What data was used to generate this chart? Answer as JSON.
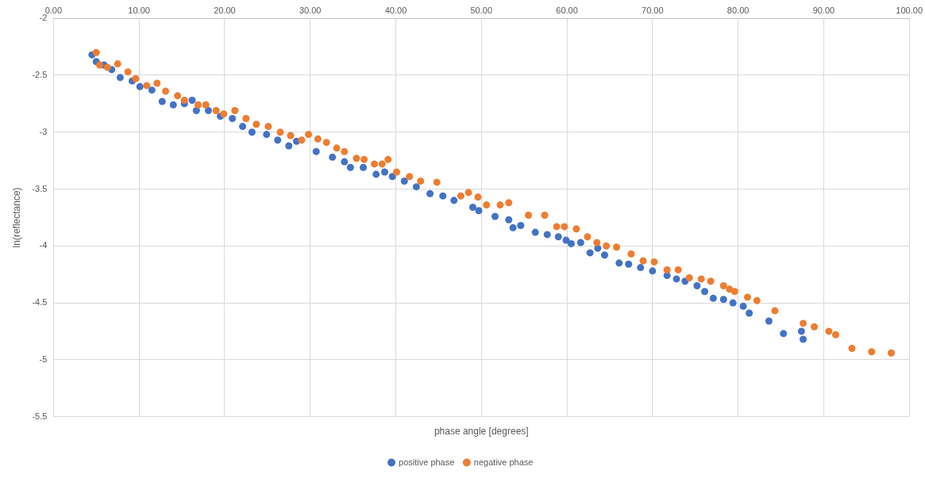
{
  "chart_data": {
    "type": "scatter",
    "xlabel": "phase angle [degrees]",
    "ylabel": "ln(reflectance)",
    "xlim": [
      0,
      100
    ],
    "ylim": [
      -5.5,
      -2
    ],
    "xticks": [
      {
        "value": 0,
        "label": "0.00"
      },
      {
        "value": 10,
        "label": "10.00"
      },
      {
        "value": 20,
        "label": "20.00"
      },
      {
        "value": 30,
        "label": "30.00"
      },
      {
        "value": 40,
        "label": "40.00"
      },
      {
        "value": 50,
        "label": "50.00"
      },
      {
        "value": 60,
        "label": "60.00"
      },
      {
        "value": 70,
        "label": "70.00"
      },
      {
        "value": 80,
        "label": "80.00"
      },
      {
        "value": 90,
        "label": "90.00"
      },
      {
        "value": 100,
        "label": "100.00"
      }
    ],
    "yticks": [
      -2,
      -2.5,
      -3,
      -3.5,
      -4,
      -4.5,
      -5,
      -5.5
    ],
    "grid": true,
    "legend": "bottom",
    "marker": "circle",
    "series": [
      {
        "name": "positive phase",
        "color": "#4472c4",
        "x": [
          4.5,
          5,
          5.9,
          6.8,
          7.8,
          9.2,
          10.1,
          11.5,
          12.7,
          14.0,
          15.3,
          16.2,
          16.7,
          18.1,
          19.5,
          20.9,
          22.1,
          23.2,
          24.9,
          26.2,
          27.5,
          28.4,
          30.7,
          32.6,
          34.0,
          34.7,
          36.2,
          37.7,
          38.7,
          39.6,
          41.0,
          42.4,
          44.0,
          45.5,
          46.8,
          49.0,
          49.7,
          51.6,
          53.2,
          53.7,
          54.6,
          56.3,
          57.7,
          59.0,
          59.9,
          60.5,
          61.6,
          62.7,
          63.6,
          64.4,
          66.1,
          67.2,
          68.6,
          70.0,
          71.7,
          72.8,
          73.8,
          75.2,
          76.1,
          77.1,
          78.3,
          79.4,
          80.6,
          81.3,
          83.6,
          85.3,
          87.4,
          87.6
        ],
        "values": [
          -2.32,
          -2.38,
          -2.41,
          -2.45,
          -2.52,
          -2.55,
          -2.6,
          -2.63,
          -2.73,
          -2.76,
          -2.75,
          -2.72,
          -2.81,
          -2.81,
          -2.86,
          -2.88,
          -2.95,
          -3.0,
          -3.02,
          -3.07,
          -3.12,
          -3.08,
          -3.17,
          -3.22,
          -3.26,
          -3.31,
          -3.31,
          -3.37,
          -3.35,
          -3.39,
          -3.43,
          -3.48,
          -3.54,
          -3.56,
          -3.6,
          -3.66,
          -3.69,
          -3.74,
          -3.77,
          -3.84,
          -3.82,
          -3.88,
          -3.9,
          -3.92,
          -3.95,
          -3.98,
          -3.97,
          -4.06,
          -4.02,
          -4.08,
          -4.15,
          -4.16,
          -4.19,
          -4.22,
          -4.26,
          -4.29,
          -4.31,
          -4.35,
          -4.4,
          -4.46,
          -4.47,
          -4.5,
          -4.53,
          -4.59,
          -4.66,
          -4.77,
          -4.75,
          -4.82
        ]
      },
      {
        "name": "negative phase",
        "color": "#ed7d31",
        "x": [
          5.0,
          5.4,
          6.3,
          7.5,
          8.7,
          9.6,
          10.9,
          12.1,
          13.1,
          14.5,
          15.3,
          16.9,
          17.8,
          19.0,
          19.9,
          21.2,
          22.5,
          23.7,
          25.1,
          26.5,
          27.7,
          29.0,
          29.8,
          30.9,
          31.9,
          33.1,
          34.0,
          35.4,
          36.3,
          37.5,
          38.4,
          39.1,
          40.1,
          41.6,
          42.9,
          44.8,
          47.6,
          48.5,
          49.6,
          50.6,
          52.2,
          53.2,
          55.5,
          57.4,
          58.8,
          59.7,
          61.1,
          62.4,
          63.5,
          64.6,
          65.8,
          67.5,
          68.9,
          70.2,
          71.7,
          73.0,
          74.3,
          75.7,
          76.8,
          78.3,
          79.0,
          79.6,
          81.1,
          82.2,
          84.3,
          87.6,
          88.9,
          90.6,
          91.4,
          93.3,
          95.6,
          97.9
        ],
        "values": [
          -2.3,
          -2.41,
          -2.43,
          -2.4,
          -2.47,
          -2.53,
          -2.59,
          -2.57,
          -2.64,
          -2.68,
          -2.72,
          -2.76,
          -2.76,
          -2.81,
          -2.84,
          -2.81,
          -2.88,
          -2.93,
          -2.95,
          -3.0,
          -3.03,
          -3.07,
          -3.02,
          -3.06,
          -3.09,
          -3.14,
          -3.17,
          -3.23,
          -3.24,
          -3.28,
          -3.28,
          -3.24,
          -3.35,
          -3.39,
          -3.43,
          -3.44,
          -3.56,
          -3.53,
          -3.57,
          -3.64,
          -3.64,
          -3.62,
          -3.73,
          -3.73,
          -3.83,
          -3.83,
          -3.85,
          -3.92,
          -3.97,
          -4.0,
          -4.01,
          -4.07,
          -4.13,
          -4.14,
          -4.21,
          -4.21,
          -4.28,
          -4.29,
          -4.31,
          -4.35,
          -4.38,
          -4.4,
          -4.45,
          -4.48,
          -4.57,
          -4.68,
          -4.71,
          -4.75,
          -4.78,
          -4.9,
          -4.93,
          -4.94
        ]
      }
    ]
  }
}
